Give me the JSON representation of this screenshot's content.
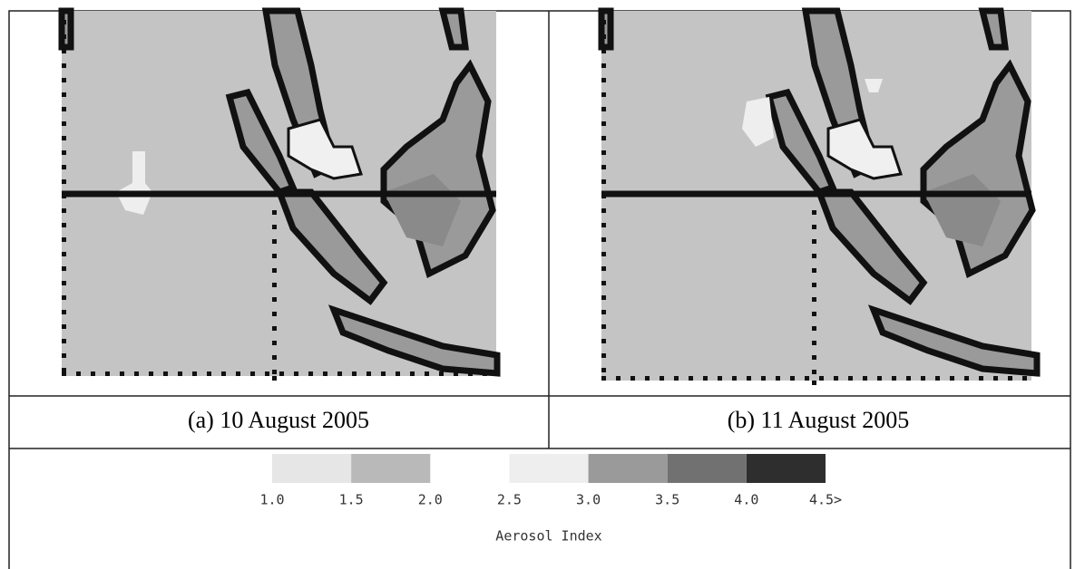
{
  "panels": [
    {
      "caption": "(a) 10 August 2005"
    },
    {
      "caption": "(b) 11 August 2005"
    }
  ],
  "legend": {
    "title": "Aerosol Index",
    "ticks": [
      {
        "value": 1,
        "label": "1.0"
      },
      {
        "value": 1.5,
        "label": "1.5"
      },
      {
        "value": 2,
        "label": "2.0"
      },
      {
        "value": 2.5,
        "label": "2.5"
      },
      {
        "value": 3,
        "label": "3.0"
      },
      {
        "value": 3.5,
        "label": "3.5"
      },
      {
        "value": 4,
        "label": "4.0"
      },
      {
        "value": 4.5,
        "label": "4.5>"
      }
    ],
    "colors": [
      "#e6e6e6",
      "#b9b9b9",
      null,
      "#eeeeee",
      "#9a9a9a",
      "#717171",
      "#2e2e2e"
    ]
  }
}
